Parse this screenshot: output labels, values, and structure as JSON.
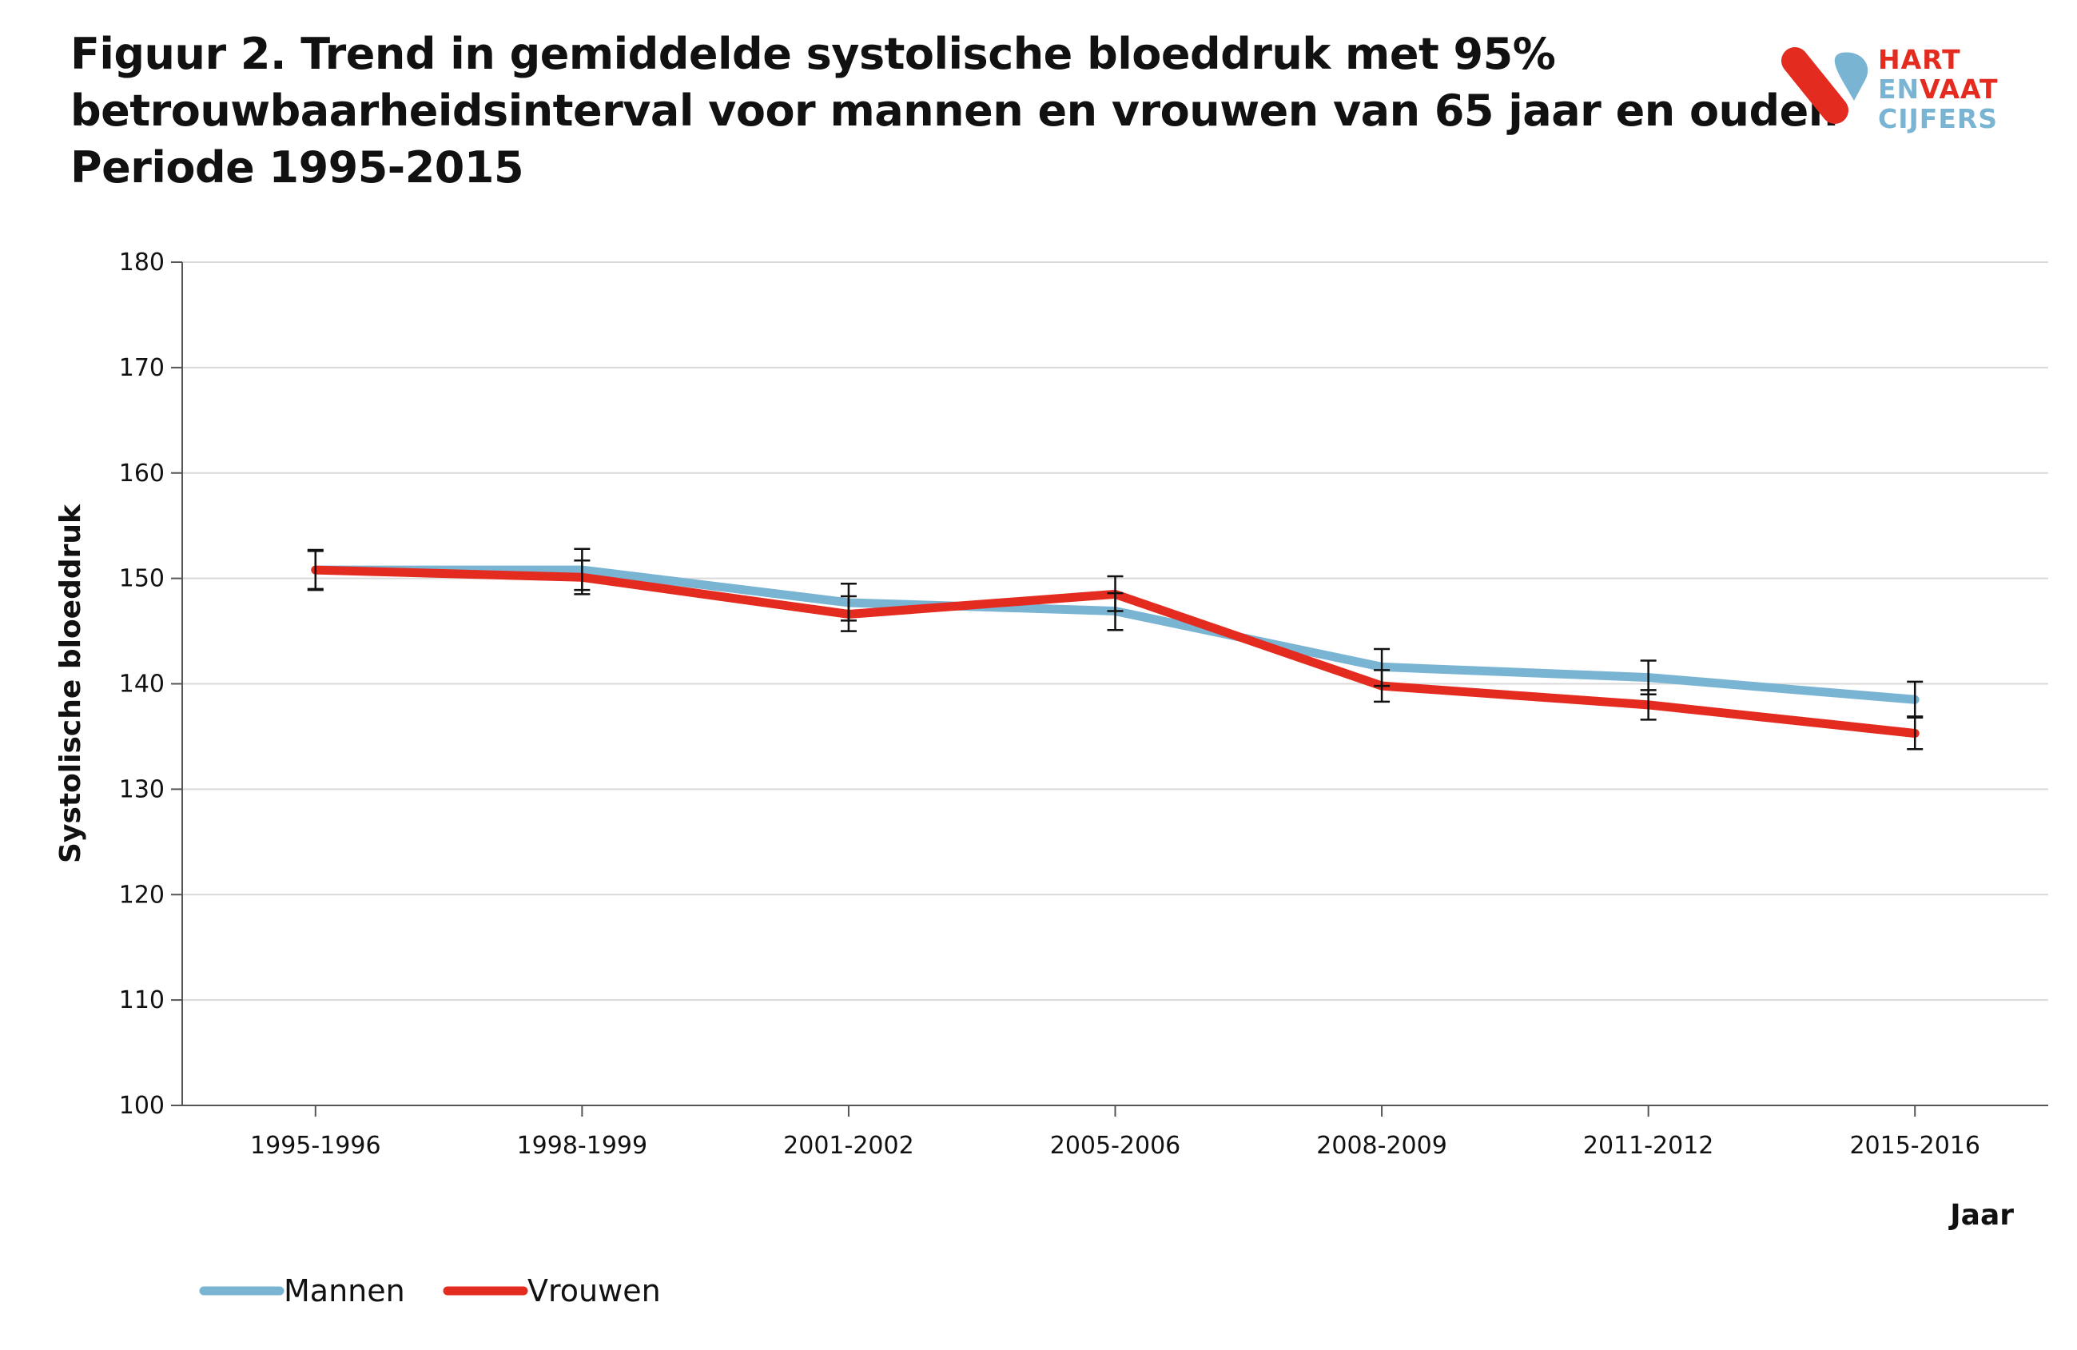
{
  "title_lines": [
    "Figuur 2. Trend in gemiddelde systolische bloeddruk met 95%",
    "betrouwbaarheidsinterval voor mannen en vrouwen van 65 jaar en ouder.",
    "Periode 1995-2015"
  ],
  "logo": {
    "line1": "HART",
    "line2a": "EN",
    "line2b": "VAAT",
    "line3": "CIJFERS",
    "red": "#e32b1f",
    "blue": "#7ab4d3"
  },
  "chart_data": {
    "type": "line",
    "categories": [
      "1995-1996",
      "1998-1999",
      "2001-2002",
      "2005-2006",
      "2008-2009",
      "2011-2012",
      "2015-2016"
    ],
    "xlabel": "Jaar",
    "ylabel": "Systolische bloeddruk",
    "ylim": [
      100,
      180
    ],
    "yticks": [
      100,
      110,
      120,
      130,
      140,
      150,
      160,
      170,
      180
    ],
    "grid": true,
    "legend_position": "bottom-left",
    "series": [
      {
        "name": "Mannen",
        "color": "#7ab4d3",
        "values": [
          150.8,
          150.8,
          147.7,
          146.9,
          141.6,
          140.6,
          138.5
        ],
        "ci_lower": [
          148.9,
          148.9,
          146.0,
          145.1,
          139.8,
          139.0,
          136.9
        ],
        "ci_upper": [
          152.7,
          152.8,
          149.5,
          148.6,
          143.3,
          142.2,
          140.2
        ]
      },
      {
        "name": "Vrouwen",
        "color": "#e32b1f",
        "values": [
          150.8,
          150.1,
          146.6,
          148.5,
          139.8,
          138.0,
          135.3
        ],
        "ci_lower": [
          149.0,
          148.5,
          145.0,
          146.9,
          138.3,
          136.6,
          133.8
        ],
        "ci_upper": [
          152.6,
          151.7,
          148.3,
          150.2,
          141.3,
          139.4,
          136.8
        ]
      }
    ]
  }
}
